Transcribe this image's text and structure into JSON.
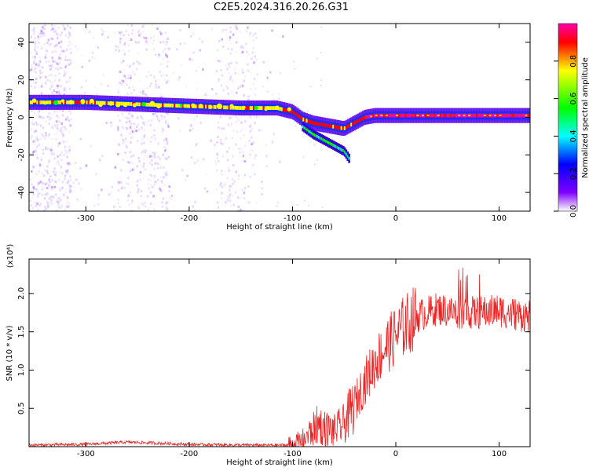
{
  "title": "C2E5.2024.316.20.26.G31",
  "chart_data": [
    {
      "type": "heatmap",
      "xlabel": "Height of straight line (km)",
      "ylabel": "Frequency (Hz)",
      "xlim": [
        -355,
        130
      ],
      "ylim": [
        -50,
        50
      ],
      "x_ticks": [
        -300,
        -200,
        -100,
        0,
        100
      ],
      "x_tick_labels": [
        "-300",
        "-200",
        "-100",
        "0",
        "100"
      ],
      "y_ticks": [
        -40,
        -20,
        0,
        20,
        40
      ],
      "y_tick_labels": [
        "-40",
        "-20",
        "0",
        "20",
        "40"
      ],
      "colorbar": {
        "label": "Normalized spectral amplitude",
        "range": [
          0,
          1
        ],
        "ticks": [
          0.0,
          0.2,
          0.4,
          0.6,
          0.8
        ],
        "tick_labels": [
          "0.0",
          "0.2",
          "0.4",
          "0.6",
          "0.8"
        ],
        "colormap": "rainbow (white-violet-blue-cyan-green-yellow-red-magenta)"
      },
      "ridge": {
        "x": [
          -355,
          -300,
          -250,
          -200,
          -150,
          -115,
          -100,
          -90,
          -80,
          -70,
          -60,
          -50,
          -40,
          -30,
          -20,
          0,
          50,
          100,
          130
        ],
        "y": [
          8,
          8,
          7,
          6,
          5,
          5,
          3,
          -1,
          -3,
          -4,
          -5,
          -6,
          -3,
          0,
          1,
          1,
          1,
          1,
          1
        ]
      },
      "lower_branch": {
        "x": [
          -90,
          -80,
          -70,
          -60,
          -50,
          -45
        ],
        "y": [
          -5,
          -9,
          -12,
          -15,
          -18,
          -22
        ]
      },
      "grid": false,
      "legend": "colorbar-right"
    },
    {
      "type": "line",
      "xlabel": "Height of straight line (km)",
      "ylabel": "SNR (10 * v/v)",
      "ylabel_exponent": "(x10⁴)",
      "xlim": [
        -355,
        130
      ],
      "ylim": [
        0,
        2.45
      ],
      "x_ticks": [
        -300,
        -200,
        -100,
        0,
        100
      ],
      "x_tick_labels": [
        "-300",
        "-200",
        "-100",
        "0",
        "100"
      ],
      "y_ticks": [
        0.5,
        1.0,
        1.5,
        2.0
      ],
      "y_tick_labels": [
        "0.5",
        "1.0",
        "1.5",
        "2.0"
      ],
      "series": [
        {
          "color": "#ee2222",
          "x": [
            -355,
            -300,
            -260,
            -200,
            -150,
            -100,
            -90,
            -80,
            -75,
            -70,
            -60,
            -50,
            -40,
            -30,
            -20,
            -10,
            0,
            10,
            20,
            30,
            40,
            60,
            80,
            100,
            120,
            130
          ],
          "y": [
            0.02,
            0.03,
            0.06,
            0.03,
            0.02,
            0.02,
            0.08,
            0.22,
            0.3,
            0.25,
            0.2,
            0.3,
            0.55,
            0.85,
            1.1,
            1.3,
            1.45,
            1.6,
            1.7,
            1.75,
            1.8,
            1.75,
            1.75,
            1.78,
            1.72,
            1.7
          ]
        }
      ],
      "grid": false
    }
  ]
}
